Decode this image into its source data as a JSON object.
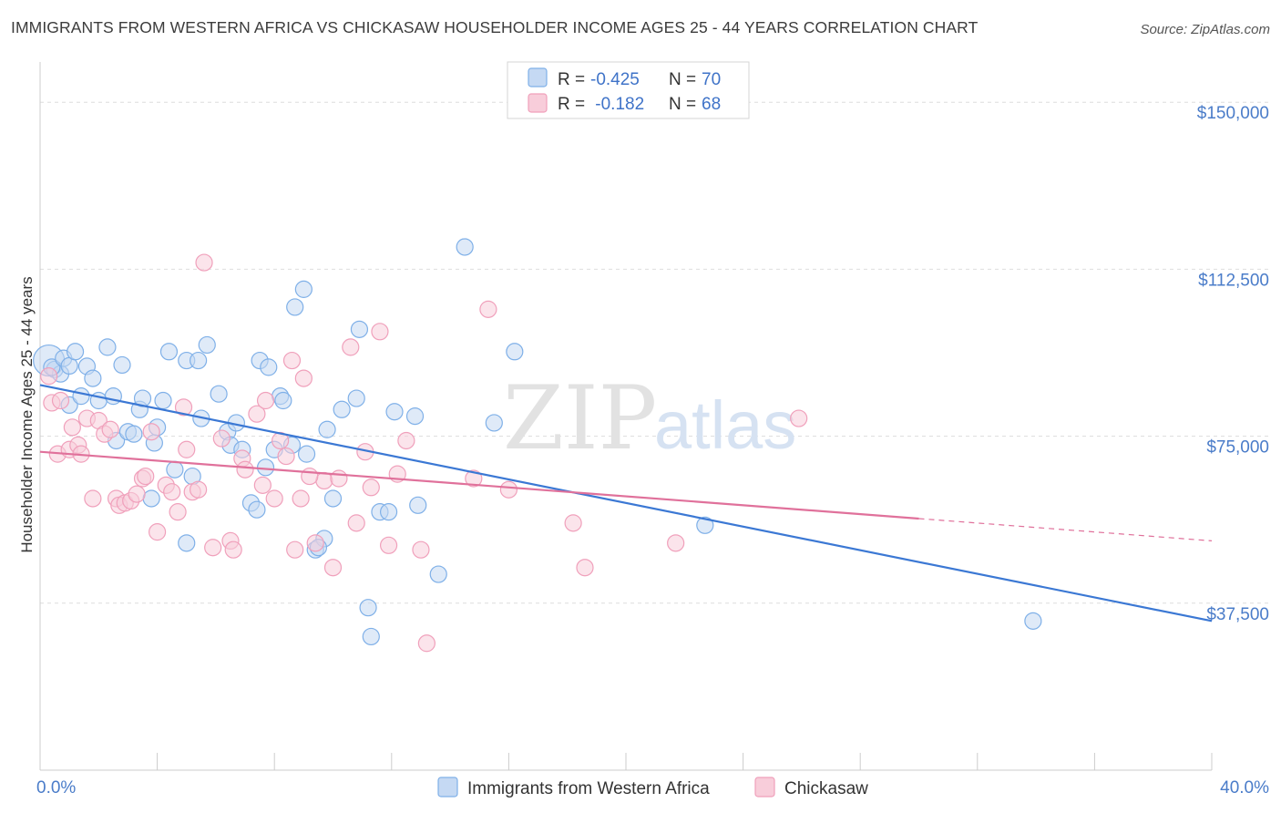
{
  "title": "IMMIGRANTS FROM WESTERN AFRICA VS CHICKASAW HOUSEHOLDER INCOME AGES 25 - 44 YEARS CORRELATION CHART",
  "source": "Source: ZipAtlas.com",
  "watermark": {
    "zip": "ZIP",
    "atlas": "atlas"
  },
  "legend": {
    "rows": [
      {
        "r_label": "R = ",
        "r_value": "-0.425",
        "n_label": "N = ",
        "n_value": "70"
      },
      {
        "r_label": "R = ",
        "r_value": " -0.182",
        "n_label": "N = ",
        "n_value": "68"
      }
    ]
  },
  "bottom_legend": [
    "Immigrants from Western Africa",
    "Chickasaw"
  ],
  "chart_data": {
    "type": "scatter",
    "title": "IMMIGRANTS FROM WESTERN AFRICA VS CHICKASAW HOUSEHOLDER INCOME AGES 25 - 44 YEARS CORRELATION CHART",
    "xlabel": "",
    "ylabel": "Householder Income Ages 25 - 44 years",
    "xlim": [
      0,
      40
    ],
    "ylim": [
      0,
      157000
    ],
    "x_tick_labels": [
      {
        "value": 0,
        "label": "0.0%"
      },
      {
        "value": 40,
        "label": "40.0%"
      }
    ],
    "y_ticks": [
      {
        "value": 37500,
        "label": "$37,500"
      },
      {
        "value": 75000,
        "label": "$75,000"
      },
      {
        "value": 112500,
        "label": "$112,500"
      },
      {
        "value": 150000,
        "label": "$150,000"
      }
    ],
    "grid": true,
    "legend_position": "top-center",
    "series": [
      {
        "name": "Immigrants from Western Africa",
        "color": "#7fb0e8",
        "fill": "#c5d9f3",
        "line_color": "#3b78d4",
        "trend": {
          "x": [
            0,
            40
          ],
          "y": [
            86500,
            33500
          ]
        },
        "points": [
          [
            0.3,
            92000
          ],
          [
            0.5,
            90000
          ],
          [
            0.7,
            89000
          ],
          [
            0.4,
            90500
          ],
          [
            0.8,
            92500
          ],
          [
            1.0,
            90800
          ],
          [
            1.2,
            94000
          ],
          [
            1.6,
            90700
          ],
          [
            2.3,
            95000
          ],
          [
            2.8,
            91000
          ],
          [
            1.0,
            82000
          ],
          [
            1.4,
            84000
          ],
          [
            1.8,
            88000
          ],
          [
            2.0,
            83000
          ],
          [
            2.5,
            84000
          ],
          [
            2.6,
            74000
          ],
          [
            3.0,
            76000
          ],
          [
            3.4,
            81000
          ],
          [
            3.5,
            83500
          ],
          [
            3.9,
            73500
          ],
          [
            3.2,
            75500
          ],
          [
            4.0,
            77000
          ],
          [
            4.2,
            83000
          ],
          [
            4.4,
            94000
          ],
          [
            4.6,
            67500
          ],
          [
            5.0,
            92000
          ],
          [
            5.2,
            66000
          ],
          [
            5.4,
            92000
          ],
          [
            5.7,
            95500
          ],
          [
            5.5,
            79000
          ],
          [
            6.1,
            84500
          ],
          [
            6.4,
            76000
          ],
          [
            6.5,
            73000
          ],
          [
            6.7,
            78000
          ],
          [
            6.9,
            72000
          ],
          [
            7.2,
            60000
          ],
          [
            7.4,
            58500
          ],
          [
            7.5,
            92000
          ],
          [
            7.7,
            68000
          ],
          [
            7.8,
            90500
          ],
          [
            8.0,
            72000
          ],
          [
            8.2,
            84000
          ],
          [
            8.3,
            83000
          ],
          [
            8.6,
            73000
          ],
          [
            8.7,
            104000
          ],
          [
            9.0,
            108000
          ],
          [
            9.1,
            71000
          ],
          [
            9.4,
            49500
          ],
          [
            9.7,
            52000
          ],
          [
            9.8,
            76500
          ],
          [
            10.0,
            61000
          ],
          [
            10.3,
            81000
          ],
          [
            10.8,
            83500
          ],
          [
            10.9,
            99000
          ],
          [
            11.2,
            36500
          ],
          [
            11.3,
            30000
          ],
          [
            11.6,
            58000
          ],
          [
            11.9,
            58000
          ],
          [
            12.1,
            80500
          ],
          [
            12.8,
            79500
          ],
          [
            12.9,
            59500
          ],
          [
            13.6,
            44000
          ],
          [
            14.5,
            117500
          ],
          [
            15.5,
            78000
          ],
          [
            16.2,
            94000
          ],
          [
            22.7,
            55000
          ],
          [
            33.9,
            33500
          ],
          [
            3.8,
            61000
          ],
          [
            5.0,
            51000
          ],
          [
            9.5,
            50000
          ]
        ]
      },
      {
        "name": "Chickasaw",
        "color": "#f0a0bb",
        "fill": "#f8cdda",
        "line_color": "#e0719b",
        "trend": {
          "x": [
            0,
            30
          ],
          "y": [
            71500,
            56500
          ]
        },
        "trend_dashed": {
          "x": [
            30,
            40
          ],
          "y": [
            56500,
            51500
          ]
        },
        "points": [
          [
            0.3,
            88500
          ],
          [
            0.4,
            82500
          ],
          [
            0.6,
            71000
          ],
          [
            0.7,
            83000
          ],
          [
            1.0,
            72000
          ],
          [
            1.1,
            77000
          ],
          [
            1.3,
            73000
          ],
          [
            1.4,
            71000
          ],
          [
            1.6,
            79000
          ],
          [
            1.8,
            61000
          ],
          [
            2.0,
            78500
          ],
          [
            2.2,
            75500
          ],
          [
            2.4,
            76500
          ],
          [
            2.6,
            61000
          ],
          [
            2.7,
            59500
          ],
          [
            2.9,
            60000
          ],
          [
            3.1,
            60500
          ],
          [
            3.3,
            62000
          ],
          [
            3.5,
            65500
          ],
          [
            3.6,
            66000
          ],
          [
            3.8,
            76000
          ],
          [
            4.0,
            53500
          ],
          [
            4.3,
            64000
          ],
          [
            4.5,
            62500
          ],
          [
            4.7,
            58000
          ],
          [
            4.9,
            81500
          ],
          [
            5.0,
            72000
          ],
          [
            5.2,
            62500
          ],
          [
            5.4,
            63000
          ],
          [
            5.6,
            114000
          ],
          [
            5.9,
            50000
          ],
          [
            6.2,
            74500
          ],
          [
            6.5,
            51500
          ],
          [
            6.6,
            49500
          ],
          [
            6.9,
            70000
          ],
          [
            7.0,
            67500
          ],
          [
            7.4,
            80000
          ],
          [
            7.6,
            64000
          ],
          [
            7.7,
            83000
          ],
          [
            8.0,
            61000
          ],
          [
            8.2,
            74000
          ],
          [
            8.4,
            70500
          ],
          [
            8.6,
            92000
          ],
          [
            8.7,
            49500
          ],
          [
            8.9,
            61000
          ],
          [
            9.0,
            88000
          ],
          [
            9.4,
            51000
          ],
          [
            9.7,
            65000
          ],
          [
            10.0,
            45500
          ],
          [
            10.2,
            65500
          ],
          [
            10.6,
            95000
          ],
          [
            10.8,
            55500
          ],
          [
            11.1,
            71500
          ],
          [
            11.3,
            63500
          ],
          [
            11.6,
            98500
          ],
          [
            11.9,
            50500
          ],
          [
            12.2,
            66500
          ],
          [
            12.5,
            74000
          ],
          [
            13.0,
            49500
          ],
          [
            13.2,
            28500
          ],
          [
            14.8,
            65500
          ],
          [
            15.3,
            103500
          ],
          [
            16.0,
            63000
          ],
          [
            18.2,
            55500
          ],
          [
            18.6,
            45500
          ],
          [
            21.7,
            51000
          ],
          [
            25.9,
            79000
          ],
          [
            9.2,
            66000
          ]
        ]
      }
    ]
  }
}
